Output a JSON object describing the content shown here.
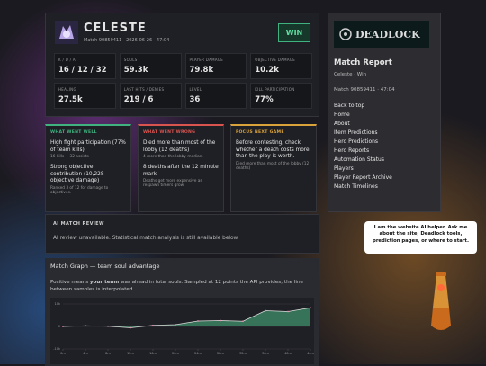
{
  "header": {
    "player": "CELESTE",
    "meta": "Match 90859411 · 2026-06-26 · 47:04",
    "result": "WIN"
  },
  "stats": [
    {
      "label": "K / D / A",
      "value": "16 / 12 / 32"
    },
    {
      "label": "SOULS",
      "value": "59.3k"
    },
    {
      "label": "PLAYER DAMAGE",
      "value": "79.8k"
    },
    {
      "label": "OBJECTIVE DAMAGE",
      "value": "10.2k"
    },
    {
      "label": "HEALING",
      "value": "27.5k"
    },
    {
      "label": "LAST HITS / DENIES",
      "value": "219 / 6"
    },
    {
      "label": "LEVEL",
      "value": "36"
    },
    {
      "label": "KILL PARTICIPATION",
      "value": "77%"
    }
  ],
  "cards": [
    {
      "title": "WHAT WENT WELL",
      "color": "#3fb27f",
      "items": [
        {
          "text": "High fight participation (77% of team kills)",
          "note": "16 kills + 32 assists"
        },
        {
          "text": "Strong objective contribution (10,228 objective damage)",
          "note": "Ranked 3 of 12 for damage to objectives."
        }
      ]
    },
    {
      "title": "WHAT WENT WRONG",
      "color": "#d9534f",
      "items": [
        {
          "text": "Died more than most of the lobby (12 deaths)",
          "note": "4 more than the lobby median."
        },
        {
          "text": "8 deaths after the 12 minute mark",
          "note": "Deaths get more expensive as respawn timers grow."
        }
      ]
    },
    {
      "title": "FOCUS NEXT GAME",
      "color": "#d9a13a",
      "items": [
        {
          "text": "Before contesting, check whether a death costs more than the play is worth.",
          "note": "Died more than most of the lobby (12 deaths)"
        }
      ]
    }
  ],
  "ai_review": {
    "title": "AI MATCH REVIEW",
    "text": "AI review unavailable. Statistical match analysis is still available below."
  },
  "graph": {
    "title": "Match Graph — team soul advantage",
    "description_start": "Positive means ",
    "emphasis": "your team",
    "description_end": " was ahead in total souls. Sampled at 12 points the API provides; the line between samples is interpolated.",
    "type": "line",
    "x": [
      0,
      4,
      8,
      12,
      16,
      20,
      24,
      28,
      32,
      36,
      40,
      44
    ],
    "values": [
      0,
      300,
      100,
      -600,
      500,
      800,
      2400,
      2600,
      2300,
      7000,
      6600,
      8300
    ],
    "xlim": [
      0,
      44
    ],
    "xticks": [
      {
        "value": 0,
        "label": "0m"
      },
      {
        "value": 4,
        "label": "4m"
      },
      {
        "value": 8,
        "label": "8m"
      },
      {
        "value": 12,
        "label": "12m"
      },
      {
        "value": 16,
        "label": "16m"
      },
      {
        "value": 20,
        "label": "20m"
      },
      {
        "value": 24,
        "label": "24m"
      },
      {
        "value": 28,
        "label": "28m"
      },
      {
        "value": 32,
        "label": "32m"
      },
      {
        "value": 36,
        "label": "36m"
      },
      {
        "value": 40,
        "label": "40m"
      },
      {
        "value": 44,
        "label": "44m"
      }
    ],
    "ylim": [
      -10000,
      10000
    ],
    "yticks": [
      {
        "value": 10000,
        "label": "10k"
      },
      0,
      {
        "value": -10000,
        "label": "-10k"
      }
    ],
    "grid": true,
    "color": "#3f8f6a"
  },
  "sidebar": {
    "logo": "DEADLOCK",
    "title": "Match Report",
    "subtitle": "Celeste · Win",
    "match": "Match 90859411 · 47:04",
    "links": [
      "Back to top",
      "Home",
      "About",
      "Item Predictions",
      "Hero Predictions",
      "Hero Reports",
      "Automation Status",
      "Players",
      "Player Report Archive",
      "Match Timelines"
    ]
  },
  "helper": {
    "text": "I am the website AI helper. Ask me about the site, Deadlock tools, prediction pages, or where to start."
  }
}
